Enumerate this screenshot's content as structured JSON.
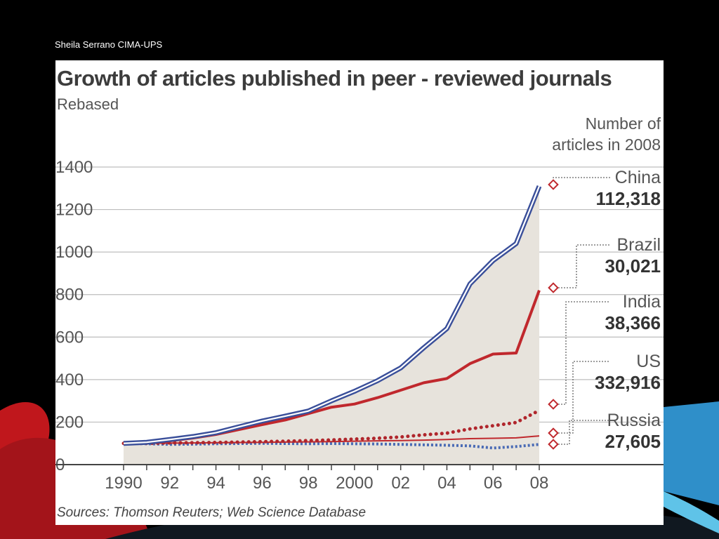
{
  "slide": {
    "author": "Sheila Serrano CIMA-UPS"
  },
  "chart_data": {
    "type": "line",
    "title": "Growth of articles published in peer - reviewed journals",
    "subtitle": "Rebased",
    "source": "Sources: Thomson Reuters; Web Science Database",
    "legend_header": [
      "Number of",
      "articles in 2008"
    ],
    "x": [
      1990,
      1991,
      1992,
      1993,
      1994,
      1995,
      1996,
      1997,
      1998,
      1999,
      2000,
      2001,
      2002,
      2003,
      2004,
      2005,
      2006,
      2007,
      2008
    ],
    "x_tick_values": [
      1990,
      1992,
      1994,
      1996,
      1998,
      2000,
      2002,
      2004,
      2006,
      2008
    ],
    "x_tick_labels": [
      "1990",
      "92",
      "94",
      "96",
      "98",
      "2000",
      "02",
      "04",
      "06",
      "08"
    ],
    "y_ticks": [
      0,
      200,
      400,
      600,
      800,
      1000,
      1200,
      1400
    ],
    "ylim": [
      0,
      1400
    ],
    "series": [
      {
        "name": "China",
        "articles_2008": "112,318",
        "style": "double-blue",
        "color": "#3a4f9a",
        "fill": true,
        "values": [
          100,
          105,
          118,
          132,
          150,
          178,
          205,
          228,
          252,
          300,
          345,
          395,
          455,
          550,
          640,
          850,
          960,
          1040,
          1310
        ]
      },
      {
        "name": "Brazil",
        "articles_2008": "30,021",
        "style": "solid",
        "color": "#c0282d",
        "values": [
          100,
          102,
          112,
          125,
          142,
          165,
          188,
          210,
          240,
          270,
          285,
          315,
          350,
          385,
          405,
          475,
          520,
          525,
          820
        ]
      },
      {
        "name": "India",
        "articles_2008": "38,366",
        "style": "dotted",
        "color": "#b0262c",
        "values": [
          100,
          100,
          102,
          103,
          104,
          106,
          108,
          110,
          113,
          116,
          120,
          124,
          130,
          140,
          148,
          168,
          183,
          198,
          255
        ]
      },
      {
        "name": "US",
        "articles_2008": "332,916",
        "style": "thin",
        "color": "#c0282d",
        "values": [
          100,
          100,
          101,
          102,
          103,
          104,
          105,
          106,
          107,
          108,
          110,
          112,
          113,
          115,
          118,
          122,
          124,
          126,
          135
        ]
      },
      {
        "name": "Russia",
        "articles_2008": "27,605",
        "style": "open-circles",
        "color": "#4a6bb5",
        "values": [
          100,
          98,
          95,
          96,
          98,
          99,
          100,
          99,
          98,
          99,
          98,
          97,
          95,
          93,
          91,
          88,
          78,
          85,
          95
        ]
      }
    ],
    "colors": {
      "axis": "#444444",
      "grid": "#bdbdbd",
      "text": "#555555",
      "area": "#e7e3dc",
      "marker": "#c0282d"
    },
    "grid": true,
    "legend_position": "right"
  }
}
